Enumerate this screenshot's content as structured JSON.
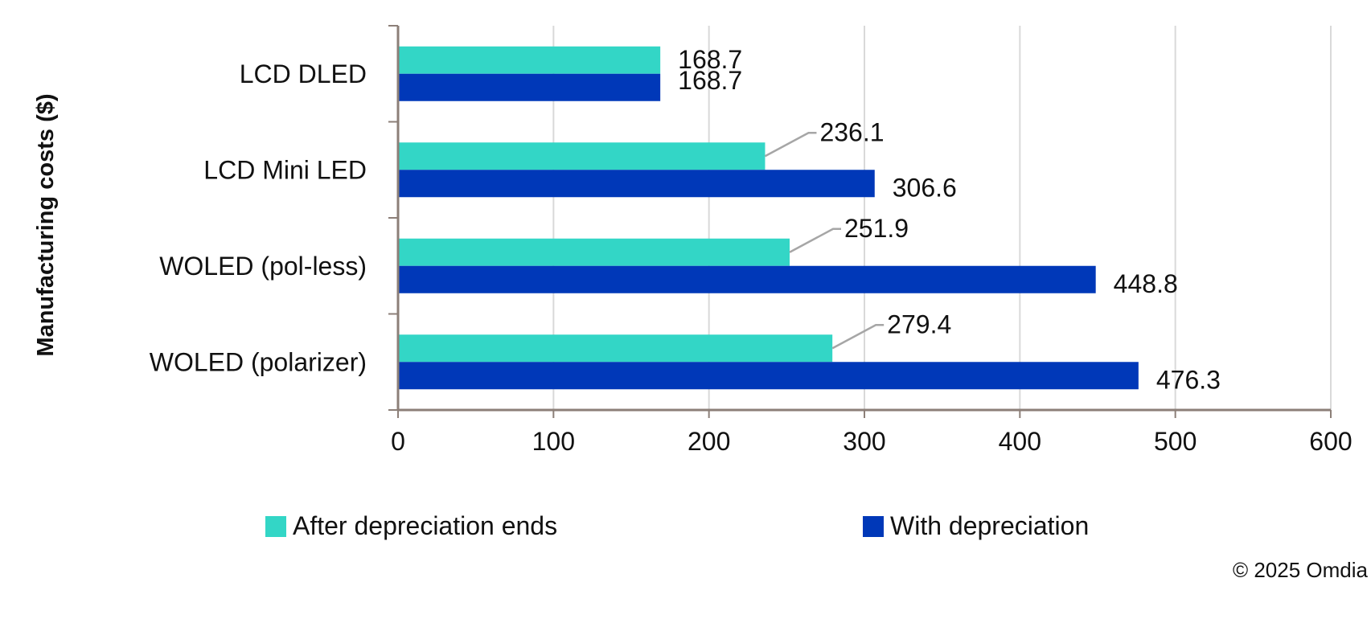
{
  "chart_data": {
    "type": "bar",
    "orientation": "horizontal",
    "ylabel": "Manufacturing costs ($)",
    "categories": [
      "LCD DLED",
      "LCD Mini LED",
      "WOLED (pol-less)",
      "WOLED (polarizer)"
    ],
    "series": [
      {
        "name": "After depreciation ends",
        "color": "#33d6c6",
        "values": [
          168.7,
          236.1,
          251.9,
          279.4
        ]
      },
      {
        "name": "With depreciation",
        "color": "#0038b8",
        "values": [
          168.7,
          306.6,
          448.8,
          476.3
        ]
      }
    ],
    "data_labels": [
      [
        "168.7",
        "236.1",
        "251.9",
        "279.4"
      ],
      [
        "168.7",
        "306.6",
        "448.8",
        "476.3"
      ]
    ],
    "xlim": [
      0,
      600
    ],
    "xticks": [
      "0",
      "100",
      "200",
      "300",
      "400",
      "500",
      "600"
    ],
    "grid": true,
    "legend_position": "bottom"
  },
  "footer": {
    "copyright": "© 2025 Omdia"
  },
  "colors": {
    "gridline": "#d9d9d9",
    "axis": "#8c7f78",
    "leader_line": "#a6a6a6"
  }
}
